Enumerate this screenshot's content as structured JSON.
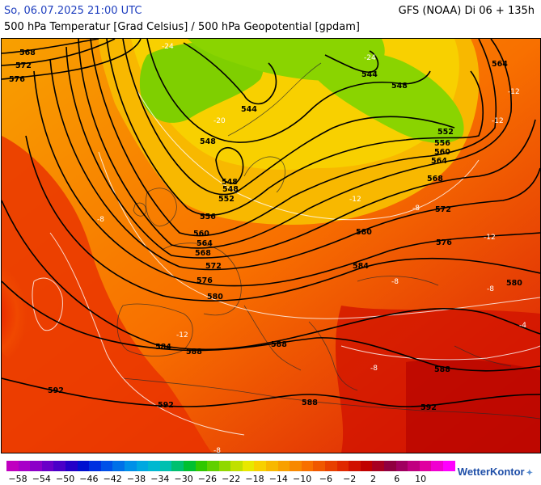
{
  "header": {
    "datetime": "So, 06.07.2025 21:00 UTC",
    "model": "GFS (NOAA) Di 06 + 135h",
    "subtitle": "500 hPa Temperatur [Grad Celsius] / 500 hPa Geopotential [gpdam]"
  },
  "map": {
    "contour_labels": [
      {
        "text": "568"
      },
      {
        "text": "572"
      },
      {
        "text": "576"
      },
      {
        "text": "544"
      },
      {
        "text": "548"
      },
      {
        "text": "544"
      },
      {
        "text": "548"
      },
      {
        "text": "552"
      },
      {
        "text": "556"
      },
      {
        "text": "560"
      },
      {
        "text": "564"
      },
      {
        "text": "564"
      },
      {
        "text": "568"
      },
      {
        "text": "572"
      },
      {
        "text": "576"
      },
      {
        "text": "548"
      },
      {
        "text": "548"
      },
      {
        "text": "552"
      },
      {
        "text": "556"
      },
      {
        "text": "560"
      },
      {
        "text": "564"
      },
      {
        "text": "568"
      },
      {
        "text": "572"
      },
      {
        "text": "576"
      },
      {
        "text": "580"
      },
      {
        "text": "580"
      },
      {
        "text": "584"
      },
      {
        "text": "580"
      },
      {
        "text": "584"
      },
      {
        "text": "588"
      },
      {
        "text": "588"
      },
      {
        "text": "588"
      },
      {
        "text": "588"
      },
      {
        "text": "592"
      },
      {
        "text": "592"
      },
      {
        "text": "592"
      }
    ],
    "temperature_labels": [
      {
        "text": "-24"
      },
      {
        "text": "-20"
      },
      {
        "text": "-24"
      },
      {
        "text": "-12"
      },
      {
        "text": "-12"
      },
      {
        "text": "-12"
      },
      {
        "text": "-8"
      },
      {
        "text": "-8"
      },
      {
        "text": "-8"
      },
      {
        "text": "-8"
      },
      {
        "text": "-4"
      },
      {
        "text": "-8"
      },
      {
        "text": "-12"
      },
      {
        "text": "-12"
      },
      {
        "text": "-8"
      }
    ]
  },
  "legend": {
    "labels": [
      "−58",
      "−54",
      "−50",
      "−46",
      "−42",
      "−38",
      "−34",
      "−30",
      "−26",
      "−22",
      "−18",
      "−14",
      "−10",
      "−6",
      "−2",
      "2",
      "6",
      "10"
    ],
    "colors": [
      "#c000c0",
      "#a800c8",
      "#8c00c8",
      "#6a00c8",
      "#4a00c8",
      "#2400c8",
      "#0010d0",
      "#0030e0",
      "#0050e8",
      "#0070e8",
      "#0090e8",
      "#00a8e0",
      "#00b8d0",
      "#00c0b0",
      "#00c070",
      "#00c030",
      "#30c800",
      "#60d000",
      "#90d800",
      "#c0e000",
      "#e8e800",
      "#f8d000",
      "#f8b800",
      "#f8a000",
      "#f88800",
      "#f87000",
      "#f05800",
      "#e84000",
      "#e02800",
      "#d01000",
      "#c00000",
      "#a80020",
      "#900040",
      "#a00060",
      "#c00080",
      "#e000a0",
      "#f000d0",
      "#ff00ff"
    ],
    "brand": "WetterKontor"
  }
}
